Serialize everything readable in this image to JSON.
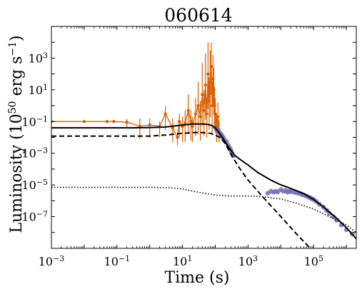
{
  "chart_data": {
    "type": "line",
    "title": "060614",
    "xlabel": "Time (s)",
    "ylabel": "Luminosity (10^50 erg s^-1)",
    "xscale": "log",
    "yscale": "log",
    "xlim": [
      0.001,
      2000000
    ],
    "ylim": [
      1e-09,
      100000
    ],
    "grid": false,
    "legend": "none",
    "x_ticks": [
      0.001,
      0.1,
      10,
      1000,
      100000
    ],
    "x_tick_labels": [
      {
        "base": "10",
        "exp": "−3"
      },
      {
        "base": "10",
        "exp": "−1"
      },
      {
        "base": "10",
        "exp": "1"
      },
      {
        "base": "10",
        "exp": "3"
      },
      {
        "base": "10",
        "exp": "5"
      }
    ],
    "y_ticks": [
      1e-07,
      1e-05,
      0.001,
      0.1,
      10,
      1000
    ],
    "y_tick_labels": [
      {
        "base": "10",
        "exp": "−7"
      },
      {
        "base": "10",
        "exp": "−5"
      },
      {
        "base": "10",
        "exp": "−3"
      },
      {
        "base": "10",
        "exp": "−1"
      },
      {
        "base": "10",
        "exp": "1"
      },
      {
        "base": "10",
        "exp": "3"
      }
    ],
    "colors": {
      "bat_points": "#d95f02",
      "xrt_points": "#7570b3",
      "model_lines": "#000000"
    },
    "series": [
      {
        "style": "solid",
        "x": [
          0.001,
          0.05,
          0.3,
          1,
          3,
          10,
          20,
          40,
          60,
          80,
          100,
          130,
          200,
          300,
          400,
          500,
          700,
          1000,
          2000,
          5000,
          10000,
          20000,
          50000,
          100000,
          200000,
          500000,
          1000000,
          2000000
        ],
        "y": [
          0.04,
          0.04,
          0.04,
          0.042,
          0.045,
          0.06,
          0.07,
          0.07,
          0.065,
          0.055,
          0.04,
          0.02,
          0.005,
          0.0015,
          0.0007,
          0.0005,
          0.0003,
          0.00018,
          6e-05,
          2e-05,
          1e-05,
          6e-06,
          2.8e-06,
          1.2e-06,
          4e-07,
          8e-08,
          2e-08,
          4e-09
        ]
      },
      {
        "style": "dashed",
        "x": [
          0.001,
          0.1,
          1,
          3,
          10,
          20,
          40,
          70,
          100,
          150,
          200,
          300,
          500,
          1000,
          3000,
          10000,
          30000,
          100000,
          300000
        ],
        "y": [
          0.012,
          0.012,
          0.012,
          0.014,
          0.018,
          0.02,
          0.02,
          0.018,
          0.014,
          0.009,
          0.004,
          0.0009,
          0.00015,
          2e-05,
          1.5e-06,
          1e-07,
          8e-09,
          6e-10,
          5e-11
        ]
      },
      {
        "style": "dotted",
        "x": [
          0.001,
          1,
          5,
          10,
          30,
          100,
          300,
          1000,
          3000,
          10000,
          30000,
          100000,
          300000,
          1000000,
          2000000
        ],
        "y": [
          7e-06,
          7e-06,
          6.5e-06,
          5.5e-06,
          3.5e-06,
          2.3e-06,
          2e-06,
          2e-06,
          1.8e-06,
          1.3e-06,
          7e-07,
          3e-07,
          1e-07,
          3e-08,
          1e-08
        ]
      }
    ],
    "scatter_series": [
      {
        "instrument_color": "bat_points",
        "x": [
          0.001,
          0.01,
          0.05,
          0.08,
          0.2,
          0.5,
          1,
          2,
          3,
          5,
          7,
          8,
          10,
          12,
          15,
          18,
          20,
          25,
          30,
          35,
          40,
          45,
          50,
          55,
          60,
          65,
          70,
          75,
          80,
          85,
          90,
          95,
          100,
          110,
          120,
          130
        ],
        "y": [
          0.1,
          0.1,
          0.1,
          0.1,
          0.09,
          0.05,
          0.06,
          0.05,
          0.3,
          0.04,
          0.01,
          0.1,
          0.05,
          0.08,
          0.5,
          0.1,
          0.05,
          0.3,
          1,
          0.2,
          5,
          0.5,
          20,
          0.3,
          100,
          2,
          30,
          300,
          1,
          50,
          10,
          1,
          0.3,
          0.05,
          0.2,
          0.03
        ],
        "yerr_upper": [
          0.1,
          0.1,
          0.1,
          0.1,
          0.2,
          0.5,
          0.4,
          0.3,
          0.5,
          0.6,
          0.3,
          0.5,
          0.6,
          0.8,
          1,
          0.7,
          0.6,
          1,
          1.5,
          1,
          2,
          1.3,
          2,
          1,
          2,
          1.5,
          2,
          1.5,
          1.5,
          1.5,
          1.4,
          1.2,
          1,
          0.8,
          0.9,
          0.6
        ],
        "yerr_lower": [
          0.1,
          0.1,
          0.1,
          0.1,
          0.3,
          0.8,
          0.8,
          0.7,
          1,
          0.9,
          0.5,
          1,
          1,
          1.2,
          1.5,
          1.2,
          1,
          1.4,
          1.8,
          1.5,
          2,
          1.6,
          2.2,
          1.5,
          2.2,
          1.8,
          2.2,
          1.8,
          1.8,
          1.7,
          1.6,
          1.5,
          1.2,
          1,
          1,
          0.8
        ]
      },
      {
        "instrument_color": "xrt_points",
        "x": [
          100,
          110,
          120,
          130,
          140,
          150,
          160,
          170,
          180,
          200,
          220,
          250,
          280,
          300,
          320,
          350,
          4000,
          5000,
          6000,
          7000,
          8000,
          10000,
          12000,
          14000,
          16000,
          18000,
          20000,
          25000,
          30000,
          35000,
          40000,
          45000,
          50000,
          60000,
          70000,
          80000,
          90000,
          100000,
          120000,
          150000,
          200000,
          250000,
          300000,
          400000,
          500000,
          700000,
          1000000,
          1500000
        ],
        "y": [
          0.04,
          0.03,
          0.025,
          0.02,
          0.018,
          0.015,
          0.012,
          0.01,
          0.008,
          0.006,
          0.005,
          0.003,
          0.002,
          0.0015,
          0.001,
          0.0007,
          3e-06,
          4e-06,
          3.5e-06,
          4e-06,
          3.6e-06,
          5e-06,
          4e-06,
          4.5e-06,
          3.5e-06,
          4e-06,
          3.8e-06,
          3.5e-06,
          3.2e-06,
          3e-06,
          2.8e-06,
          2.5e-06,
          2.3e-06,
          2e-06,
          1.7e-06,
          1.5e-06,
          1.3e-06,
          1.2e-06,
          9e-07,
          6e-07,
          4e-07,
          2.5e-07,
          1.6e-07,
          1e-07,
          6e-08,
          3e-08,
          1.5e-08,
          8e-09
        ]
      }
    ]
  }
}
